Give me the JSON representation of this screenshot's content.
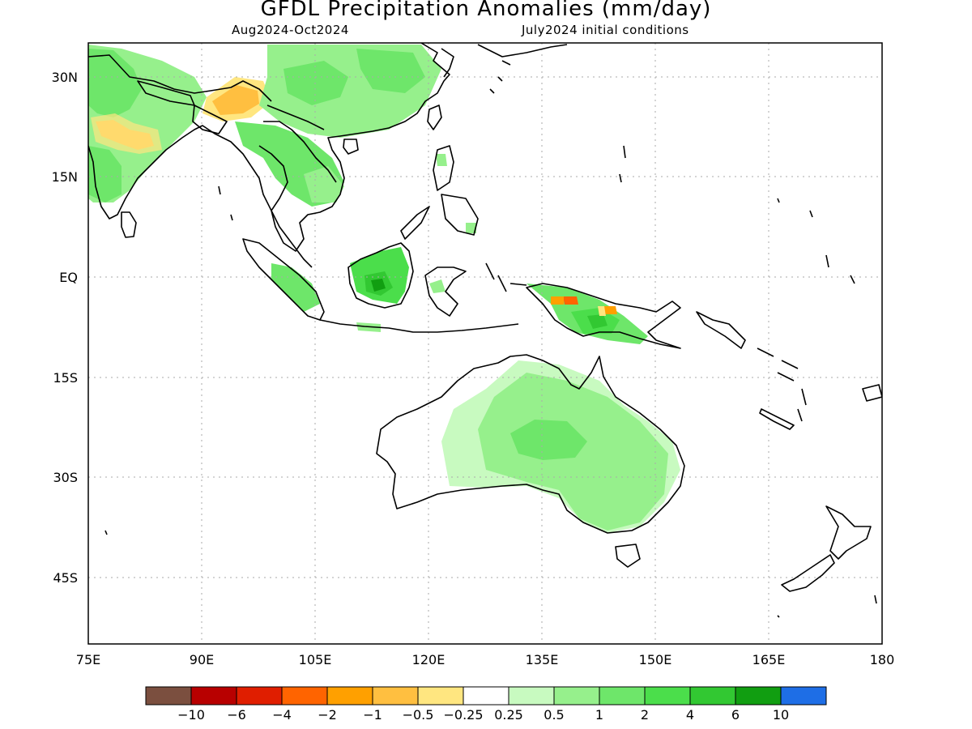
{
  "header": {
    "title": "GFDL Precipitation Anomalies (mm/day)",
    "period": "Aug2024-Oct2024",
    "initial_conditions": "July2024 initial conditions"
  },
  "map": {
    "lon_labels": [
      "75E",
      "90E",
      "105E",
      "120E",
      "135E",
      "150E",
      "165E",
      "180"
    ],
    "lat_labels": [
      "30N",
      "15N",
      "EQ",
      "15S",
      "30S",
      "45S"
    ],
    "lon_range": [
      75,
      180
    ],
    "lat_range": [
      -55,
      35
    ],
    "grid": true
  },
  "colorbar": {
    "colors": [
      "#7b4f3f",
      "#b80000",
      "#e01e00",
      "#ff6400",
      "#ffa000",
      "#ffbf40",
      "#ffe680",
      "#ffffff",
      "#c8fac0",
      "#96f08c",
      "#6ee66a",
      "#4bde4b",
      "#32c832",
      "#119e11",
      "#1e6ee6"
    ],
    "labels": [
      "-10",
      "-6",
      "-4",
      "-2",
      "-1",
      "-0.5",
      "-0.25",
      "0.25",
      "0.5",
      "1",
      "2",
      "4",
      "6",
      "10"
    ]
  },
  "anomaly_regions": [
    {
      "name": "India",
      "color": "#96f08c"
    },
    {
      "name": "Tibet-Himalaya",
      "color": "#ffbf40"
    },
    {
      "name": "Southern China",
      "color": "#96f08c"
    },
    {
      "name": "Indochina",
      "color": "#6ee66a"
    },
    {
      "name": "Borneo",
      "color": "#4bde4b"
    },
    {
      "name": "New Guinea",
      "color": "#4bde4b"
    },
    {
      "name": "Australia",
      "color": "#96f08c"
    }
  ]
}
